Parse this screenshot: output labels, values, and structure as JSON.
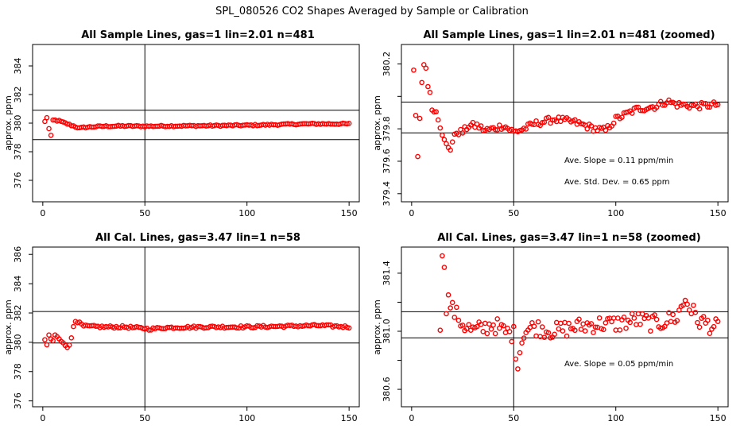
{
  "figure_title": "SPL_080526  CO2 Shapes Averaged by Sample or Calibration",
  "colors": {
    "points": "#ff0000",
    "axes": "#000000"
  },
  "chart_data": [
    {
      "type": "scatter",
      "title": "All Sample Lines, gas=1 lin=2.01 n=481",
      "xlabel": "",
      "ylabel": "approx. ppm",
      "xlim": [
        -5,
        155
      ],
      "ylim": [
        374.5,
        385.5
      ],
      "xticks": [
        0,
        50,
        100,
        150
      ],
      "yticks": [
        376,
        378,
        380,
        382,
        384
      ],
      "hlines": [
        378.85,
        380.9
      ],
      "vlines": [
        50
      ],
      "annotations": [],
      "point_spec": {
        "x": [
          1,
          150
        ],
        "anchors": [
          [
            1,
            380.1
          ],
          [
            2,
            380.4
          ],
          [
            3,
            379.6
          ],
          [
            4,
            379.1
          ],
          [
            5,
            380.2
          ],
          [
            6,
            380.2
          ],
          [
            8,
            380.15
          ],
          [
            10,
            380.05
          ],
          [
            12,
            379.95
          ],
          [
            14,
            379.85
          ],
          [
            16,
            379.75
          ],
          [
            18,
            379.65
          ],
          [
            20,
            379.7
          ],
          [
            25,
            379.75
          ],
          [
            30,
            379.78
          ],
          [
            40,
            379.8
          ],
          [
            50,
            379.78
          ],
          [
            60,
            379.8
          ],
          [
            80,
            379.82
          ],
          [
            100,
            379.85
          ],
          [
            110,
            379.88
          ],
          [
            120,
            379.92
          ],
          [
            130,
            379.95
          ],
          [
            140,
            379.95
          ],
          [
            150,
            379.95
          ]
        ],
        "jitter": 0.05
      }
    },
    {
      "type": "scatter",
      "title": "All Sample Lines, gas=1 lin=2.01 n=481 (zoomed)",
      "xlabel": "",
      "ylabel": "approx. ppm",
      "xlim": [
        -5,
        155
      ],
      "ylim": [
        379.35,
        380.32
      ],
      "xticks": [
        0,
        50,
        100,
        150
      ],
      "yticks": [
        379.4,
        379.6,
        379.8,
        380.0,
        380.2
      ],
      "yticklabels": [
        "379.4",
        "379.6",
        "379.8",
        "",
        "380.2"
      ],
      "hlines": [
        379.775,
        379.965
      ],
      "vlines": [
        50
      ],
      "annotations": [
        "Ave. Slope =  0.11  ppm/min",
        "Ave. Std. Dev. =  0.65  ppm"
      ],
      "point_spec": {
        "x": [
          1,
          150
        ],
        "anchors": [
          [
            1,
            380.15
          ],
          [
            3,
            379.63
          ],
          [
            5,
            380.1
          ],
          [
            6,
            380.18
          ],
          [
            7,
            380.18
          ],
          [
            8,
            380.08
          ],
          [
            9,
            380.02
          ],
          [
            10,
            379.92
          ],
          [
            12,
            379.92
          ],
          [
            14,
            379.82
          ],
          [
            15,
            379.75
          ],
          [
            17,
            379.7
          ],
          [
            19,
            379.68
          ],
          [
            20,
            379.72
          ],
          [
            22,
            379.78
          ],
          [
            25,
            379.78
          ],
          [
            28,
            379.82
          ],
          [
            32,
            379.82
          ],
          [
            36,
            379.79
          ],
          [
            40,
            379.8
          ],
          [
            45,
            379.82
          ],
          [
            50,
            379.78
          ],
          [
            55,
            379.8
          ],
          [
            60,
            379.83
          ],
          [
            70,
            379.86
          ],
          [
            80,
            379.84
          ],
          [
            85,
            379.82
          ],
          [
            90,
            379.8
          ],
          [
            95,
            379.79
          ],
          [
            100,
            379.86
          ],
          [
            105,
            379.89
          ],
          [
            110,
            379.92
          ],
          [
            120,
            379.94
          ],
          [
            125,
            379.97
          ],
          [
            130,
            379.95
          ],
          [
            140,
            379.94
          ],
          [
            150,
            379.95
          ]
        ],
        "jitter": 0.02
      }
    },
    {
      "type": "scatter",
      "title": "All Cal. Lines, gas=3.47 lin=1 n=58",
      "xlabel": "",
      "ylabel": "approx. ppm",
      "xlim": [
        -5,
        155
      ],
      "ylim": [
        375.6,
        386.5
      ],
      "xticks": [
        0,
        50,
        100,
        150
      ],
      "yticks": [
        376,
        378,
        380,
        382,
        384,
        386
      ],
      "hlines": [
        379.95,
        382.1
      ],
      "vlines": [
        50
      ],
      "annotations": [],
      "point_spec": {
        "x": [
          1,
          150
        ],
        "anchors": [
          [
            1,
            380.1
          ],
          [
            2,
            379.8
          ],
          [
            3,
            380.5
          ],
          [
            4,
            380.2
          ],
          [
            5,
            380.1
          ],
          [
            6,
            380.5
          ],
          [
            8,
            380.2
          ],
          [
            10,
            380.0
          ],
          [
            12,
            379.7
          ],
          [
            13,
            379.75
          ],
          [
            14,
            380.3
          ],
          [
            15,
            381.1
          ],
          [
            16,
            381.5
          ],
          [
            18,
            381.3
          ],
          [
            20,
            381.1
          ],
          [
            30,
            381.05
          ],
          [
            40,
            381.05
          ],
          [
            50,
            380.95
          ],
          [
            52,
            380.9
          ],
          [
            60,
            381.0
          ],
          [
            80,
            381.05
          ],
          [
            100,
            381.05
          ],
          [
            120,
            381.1
          ],
          [
            135,
            381.15
          ],
          [
            150,
            381.05
          ]
        ],
        "jitter": 0.08
      }
    },
    {
      "type": "scatter",
      "title": "All Cal. Lines, gas=3.47 lin=1 n=58 (zoomed)",
      "xlabel": "",
      "ylabel": "approx. ppm",
      "xlim": [
        -5,
        155
      ],
      "ylim": [
        380.48,
        381.58
      ],
      "xticks": [
        0,
        50,
        100,
        150
      ],
      "yticks": [
        380.6,
        380.8,
        381.0,
        381.2,
        381.4
      ],
      "yticklabels": [
        "380.6",
        "",
        "381.0",
        "",
        "381.4"
      ],
      "hlines": [
        380.955,
        381.135
      ],
      "vlines": [
        50
      ],
      "annotations": [
        "Ave. Slope =  0.05  ppm/min"
      ],
      "point_spec": {
        "x": [
          14,
          150
        ],
        "anchors": [
          [
            14,
            381.05
          ],
          [
            15,
            381.48
          ],
          [
            16,
            381.48
          ],
          [
            17,
            381.18
          ],
          [
            18,
            381.22
          ],
          [
            20,
            381.15
          ],
          [
            25,
            381.05
          ],
          [
            30,
            381.0
          ],
          [
            35,
            381.02
          ],
          [
            40,
            381.05
          ],
          [
            45,
            381.0
          ],
          [
            50,
            380.98
          ],
          [
            51,
            380.85
          ],
          [
            52,
            380.8
          ],
          [
            55,
            381.0
          ],
          [
            60,
            381.03
          ],
          [
            70,
            381.0
          ],
          [
            80,
            381.03
          ],
          [
            90,
            381.05
          ],
          [
            100,
            381.05
          ],
          [
            110,
            381.08
          ],
          [
            120,
            381.05
          ],
          [
            130,
            381.1
          ],
          [
            134,
            381.22
          ],
          [
            140,
            381.08
          ],
          [
            150,
            381.02
          ]
        ],
        "jitter": 0.06
      }
    }
  ]
}
